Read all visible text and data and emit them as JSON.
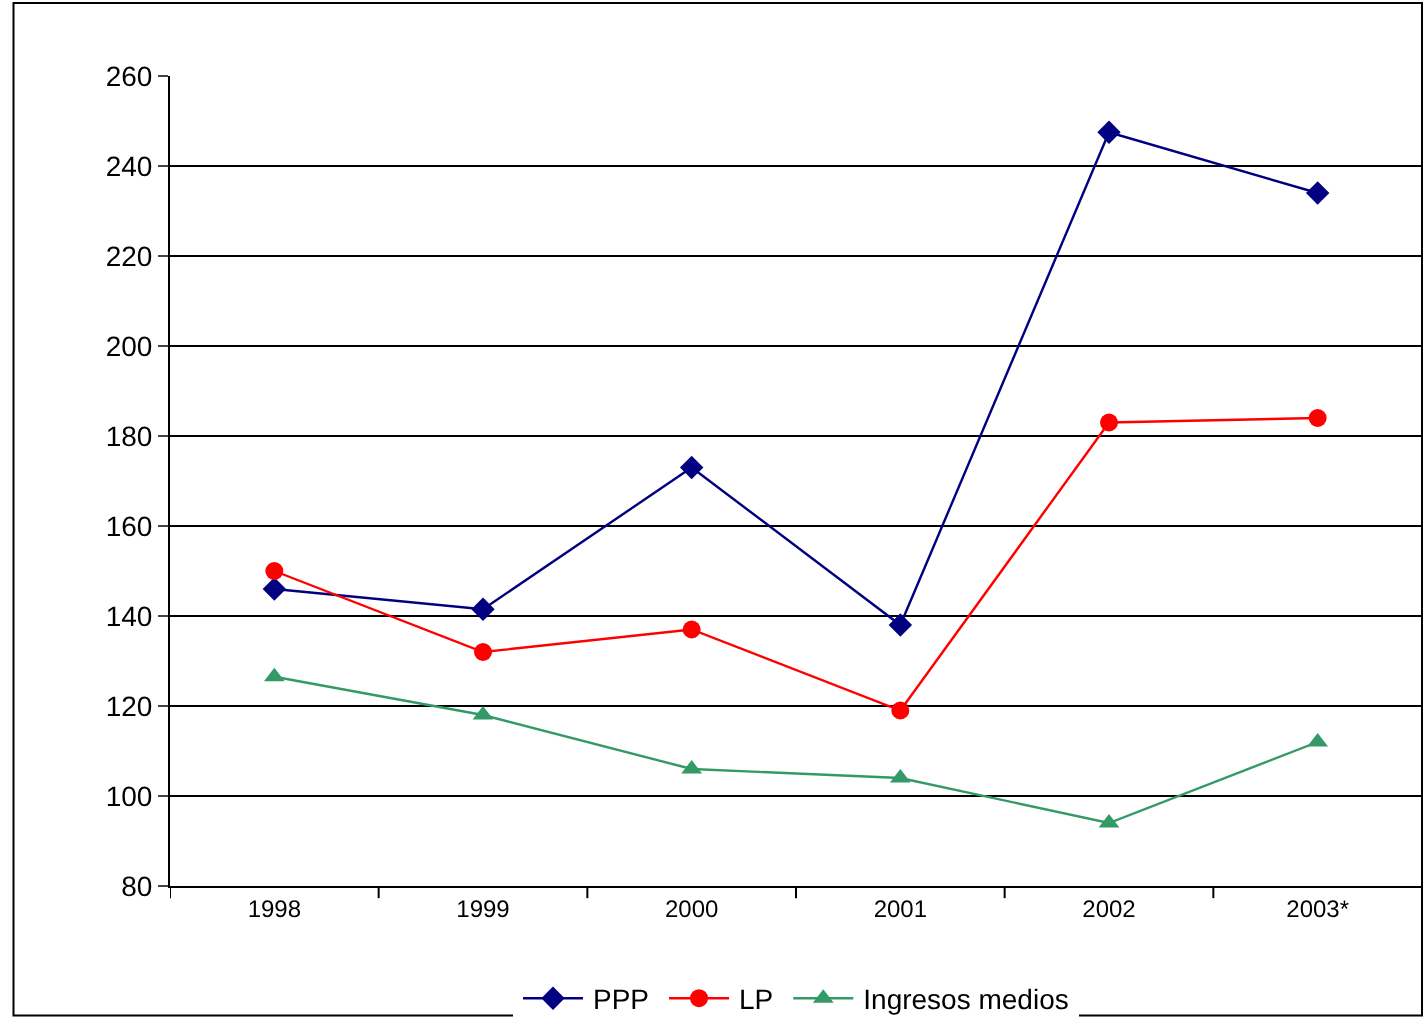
{
  "chart_data": {
    "type": "line",
    "categories": [
      "1998",
      "1999",
      "2000",
      "2001",
      "2002",
      "2003*"
    ],
    "series": [
      {
        "name": "PPP",
        "color": "#000080",
        "marker": "diamond",
        "values": [
          146,
          141.5,
          173,
          138,
          247.5,
          234
        ]
      },
      {
        "name": "LP",
        "color": "#ff0000",
        "marker": "circle",
        "values": [
          150,
          132,
          137,
          119,
          183,
          184
        ]
      },
      {
        "name": "Ingresos medios",
        "color": "#339966",
        "marker": "triangle",
        "values": [
          126.5,
          118,
          106,
          104,
          94,
          112
        ]
      }
    ],
    "ylim": [
      80,
      260
    ],
    "yticks": [
      80,
      100,
      120,
      140,
      160,
      180,
      200,
      220,
      240,
      260
    ],
    "grid": "y",
    "legend": "bottom",
    "line_style": "solid"
  }
}
